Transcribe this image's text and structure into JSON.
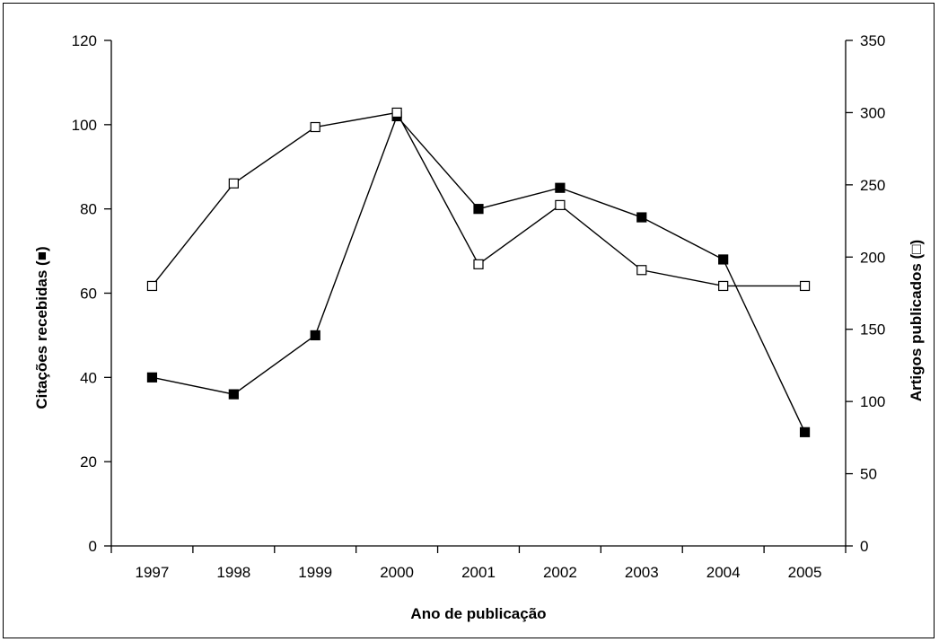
{
  "chart_data": {
    "type": "line",
    "title": "",
    "xlabel": "Ano de publicação",
    "ylabel_left": "Citações recebidas (■)",
    "ylabel_right": "Artigos publicados (□)",
    "categories": [
      "1997",
      "1998",
      "1999",
      "2000",
      "2001",
      "2002",
      "2003",
      "2004",
      "2005"
    ],
    "ylim_left": [
      0,
      120
    ],
    "yticks_left": [
      0,
      20,
      40,
      60,
      80,
      100,
      120
    ],
    "ylim_right": [
      0,
      350
    ],
    "yticks_right": [
      0,
      50,
      100,
      150,
      200,
      250,
      300,
      350
    ],
    "grid": false,
    "series": [
      {
        "name": "Citações recebidas",
        "axis": "left",
        "marker": "filled-square",
        "values": [
          40,
          36,
          50,
          102,
          80,
          85,
          78,
          68,
          27
        ]
      },
      {
        "name": "Artigos publicados",
        "axis": "right",
        "marker": "open-square",
        "values": [
          180,
          251,
          290,
          300,
          195,
          236,
          191,
          180,
          180
        ]
      }
    ],
    "colors": {
      "line": "#000000",
      "background": "#ffffff"
    }
  }
}
